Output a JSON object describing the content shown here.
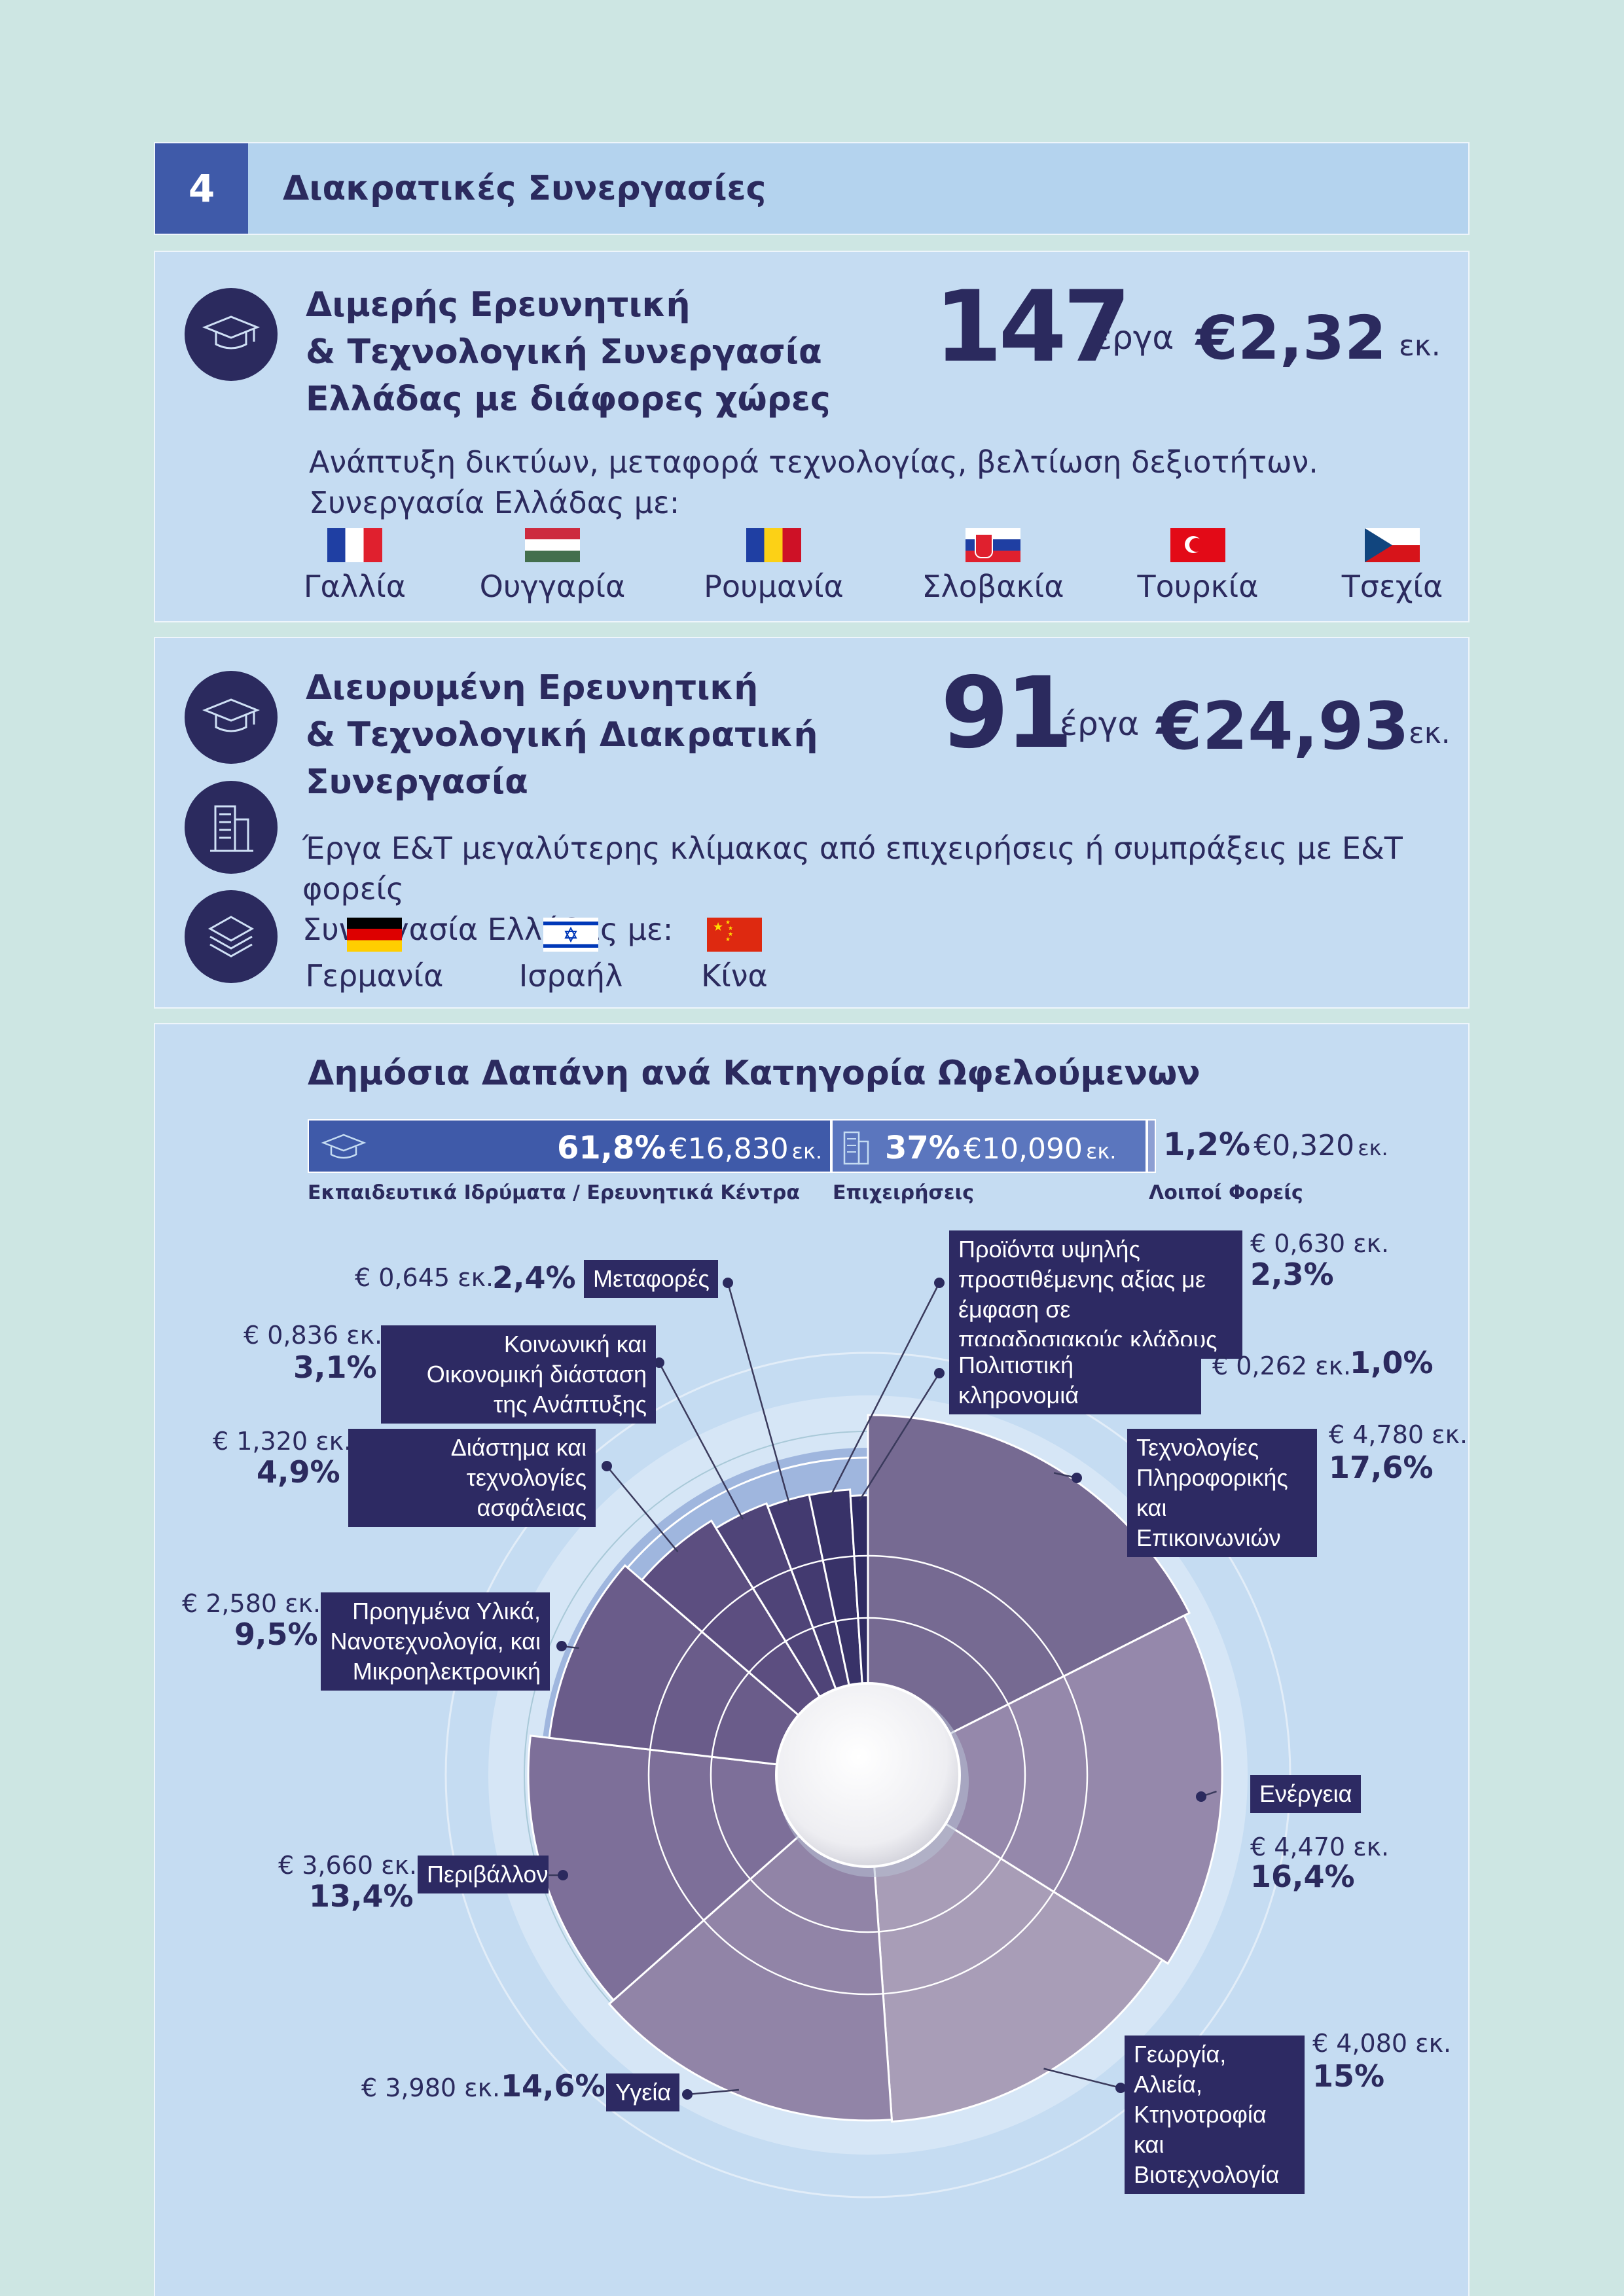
{
  "header": {
    "number": "4",
    "title": "Διακρατικές Συνεργασίες"
  },
  "panel1": {
    "title_lines": [
      "Διμερής Ερευνητική",
      "& Τεχνολογική Συνεργασία",
      "Ελλάδας με διάφορες χώρες"
    ],
    "projects": "147",
    "projects_label": "έργα",
    "amount": "€2,32",
    "amount_unit": "εκ.",
    "description": "Ανάπτυξη δικτύων, μεταφορά τεχνολογίας, βελτίωση δεξιοτήτων.",
    "cooperation": "Συνεργασία Ελλάδας με:",
    "countries": [
      "Γαλλία",
      "Ουγγαρία",
      "Ρουμανία",
      "Σλοβακία",
      "Τουρκία",
      "Τσεχία"
    ]
  },
  "panel2": {
    "title_lines": [
      "Διευρυμένη Ερευνητική",
      "& Τεχνολογική Διακρατική",
      "Συνεργασία"
    ],
    "projects": "91",
    "projects_label": "έργα",
    "amount": "€24,93",
    "amount_unit": "εκ.",
    "description": "Έργα Ε&Τ μεγαλύτερης κλίμακας από επιχειρήσεις ή συμπράξεις με Ε&Τ φορείς",
    "cooperation": "Συνεργασία Ελλάδας με:",
    "countries": [
      "Γερμανία",
      "Ισραήλ",
      "Κίνα"
    ]
  },
  "panel3": {
    "title": "Δημόσια Δαπάνη ανά Κατηγορία Ωφελούμενων",
    "bar": [
      {
        "pct": "61,8%",
        "amount": "€16,830",
        "unit": "εκ.",
        "label": "Εκπαιδευτικά Ιδρύματα / Ερευνητικά Κέντρα"
      },
      {
        "pct": "37%",
        "amount": "€10,090",
        "unit": "εκ.",
        "label": "Επιχειρήσεις"
      },
      {
        "pct": "1,2%",
        "amount": "€0,320",
        "unit": "εκ.",
        "label": "Λοιποί Φορείς"
      }
    ]
  },
  "chart_data": {
    "type": "pie",
    "categories": [
      "Τεχνολογίες Πληροφορικής και Επικοινωνιών",
      "Ενέργεια",
      "Γεωργία, Αλιεία, Κτηνοτροφία και Βιοτεχνολογία",
      "Υγεία",
      "Περιβάλλον",
      "Προηγμένα Υλικά, Νανοτεχνολογία, και Μικροηλεκτρονική",
      "Διάστημα και τεχνολογίες ασφάλειας",
      "Κοινωνική και Οικονομική διάσταση της Ανάπτυξης",
      "Μεταφορές",
      "Προϊόντα υψηλής προστιθέμενης αξίας με έμφαση σε παραδοσιακούς κλάδους",
      "Πολιτιστική κληρονομιά"
    ],
    "values": [
      17.6,
      16.4,
      15,
      14.6,
      13.4,
      9.5,
      4.9,
      3.1,
      2.4,
      2.3,
      1.0
    ],
    "pct_labels": [
      "17,6%",
      "16,4%",
      "15%",
      "14,6%",
      "13,4%",
      "9,5%",
      "4,9%",
      "3,1%",
      "2,4%",
      "2,3%",
      "1,0%"
    ],
    "amounts": [
      "€ 4,780 εκ.",
      "€ 4,470 εκ.",
      "€ 4,080 εκ.",
      "€ 3,980 εκ.",
      "€ 3,660 εκ.",
      "€ 2,580 εκ.",
      "€ 1,320 εκ.",
      "€ 0,836 εκ.",
      "€ 0,645 εκ.",
      "€ 0,630 εκ.",
      "€ 0,262 εκ."
    ],
    "colors": [
      "#766a92",
      "#9588ab",
      "#a89db7",
      "#9184a7",
      "#7d6f99",
      "#6a5c8a",
      "#5c4e80",
      "#4f4478",
      "#433a70",
      "#383268",
      "#2f2b62"
    ]
  },
  "colors": {
    "page_bg": "#cde6e3",
    "panel_bg": "#c5dcf2",
    "header_bg": "#b4d3ee",
    "accent": "#3f5aa9",
    "navy": "#2b2a5e"
  }
}
